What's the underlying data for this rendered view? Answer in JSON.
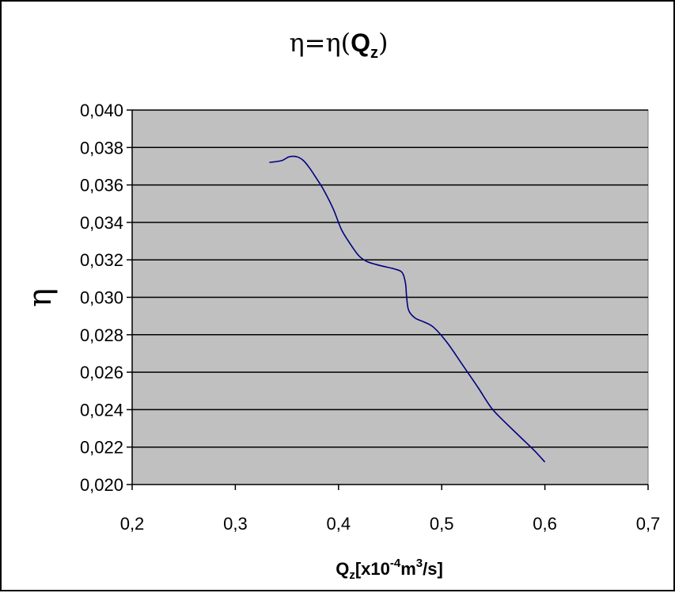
{
  "chart_data": {
    "type": "line",
    "title": {
      "prefix": "η=η(",
      "main": "Q",
      "sub": "z",
      "suffix": ")"
    },
    "ylabel": "η",
    "xlabel": {
      "q": "Q",
      "q_sub": "z",
      "bracket_open": "[x10",
      "exp": "-4",
      "unit_m": "m",
      "unit_exp": "3",
      "unit_rest": "/s]"
    },
    "xlim": [
      0.2,
      0.7
    ],
    "ylim": [
      0.02,
      0.04
    ],
    "x_ticks": [
      "0,2",
      "0,3",
      "0,4",
      "0,5",
      "0,6",
      "0,7"
    ],
    "y_ticks": [
      "0,040",
      "0,038",
      "0,036",
      "0,034",
      "0,032",
      "0,030",
      "0,028",
      "0,026",
      "0,024",
      "0,022",
      "0,020"
    ],
    "x_tick_values": [
      0.2,
      0.3,
      0.4,
      0.5,
      0.6,
      0.7
    ],
    "y_tick_values": [
      0.04,
      0.038,
      0.036,
      0.034,
      0.032,
      0.03,
      0.028,
      0.026,
      0.024,
      0.022,
      0.02
    ],
    "grid": "horizontal",
    "plot_background": "#c0c0c0",
    "series": [
      {
        "color": "#000080",
        "x": [
          0.333,
          0.345,
          0.352,
          0.36,
          0.366,
          0.372,
          0.378,
          0.386,
          0.395,
          0.403,
          0.412,
          0.42,
          0.428,
          0.44,
          0.455,
          0.462,
          0.465,
          0.466,
          0.468,
          0.474,
          0.482,
          0.492,
          0.505,
          0.52,
          0.535,
          0.548,
          0.56,
          0.575,
          0.59,
          0.6
        ],
        "y": [
          0.0372,
          0.0373,
          0.0375,
          0.0375,
          0.0373,
          0.0369,
          0.0364,
          0.0357,
          0.0347,
          0.0336,
          0.0328,
          0.0322,
          0.0319,
          0.0317,
          0.0315,
          0.0313,
          0.0307,
          0.03,
          0.0293,
          0.0289,
          0.0287,
          0.0284,
          0.0276,
          0.0264,
          0.0252,
          0.0241,
          0.0234,
          0.0226,
          0.0218,
          0.0212
        ]
      }
    ]
  }
}
